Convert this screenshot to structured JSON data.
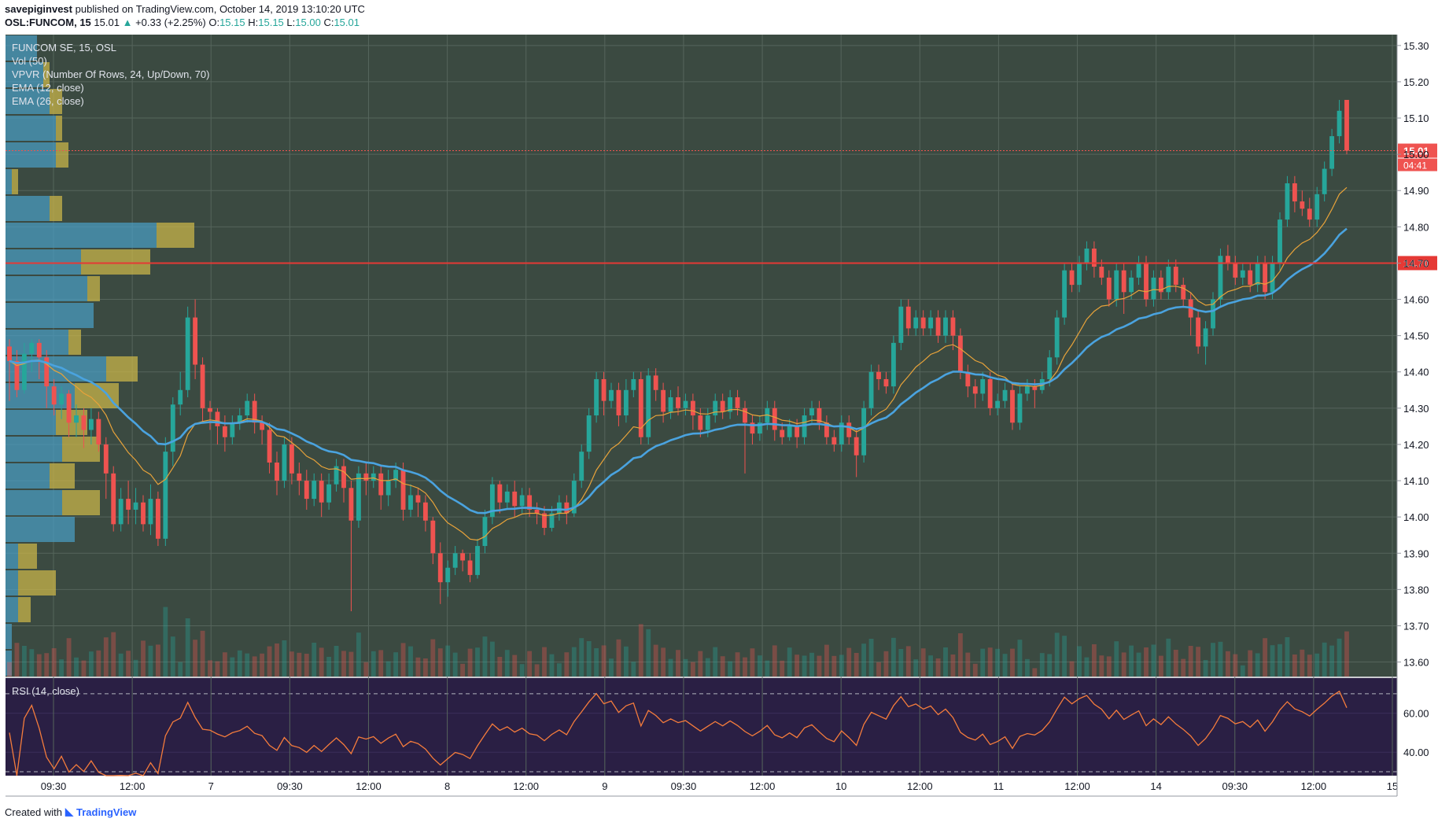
{
  "header": {
    "author": "savepiginvest",
    "published_text": "published on TradingView.com, October 14, 2019 13:10:20 UTC",
    "symbol": "OSL:FUNCOM, 15",
    "last": "15.01",
    "change": "+0.33 (+2.25%)",
    "o_label": "O:",
    "o": "15.15",
    "h_label": "H:",
    "h": "15.15",
    "l_label": "L:",
    "l": "15.00",
    "c_label": "C:",
    "c": "15.01"
  },
  "legend": {
    "title": "FUNCOM SE, 15, OSL",
    "vol": "Vol (50)",
    "vpvr": "VPVR (Number Of Rows, 24, Up/Down, 70)",
    "ema12": "EMA (12, close)",
    "ema26": "EMA (26, close)",
    "rsi": "RSI (14, close)"
  },
  "footer": {
    "created_with": "Created with",
    "brand": "TradingView"
  },
  "colors": {
    "pane_bg": "#3b4a41",
    "rsi_bg": "#2a1f44",
    "up": "#26a69a",
    "down": "#ef5350",
    "ema12": "#e8a33a",
    "ema26": "#4aa3df",
    "vpvr_up": "#4a9fc8",
    "vpvr_down": "#c8b44a",
    "level_line": "#e53935",
    "rsi_line": "#f57c3c"
  },
  "chart_data": {
    "type": "candlestick",
    "y_axis_ticks": [
      "15.30",
      "15.20",
      "15.10",
      "15.00",
      "14.90",
      "14.80",
      "14.70",
      "14.60",
      "14.50",
      "14.40",
      "14.30",
      "14.20",
      "14.10",
      "14.00",
      "13.90",
      "13.80",
      "13.70",
      "13.60"
    ],
    "ylim": [
      13.56,
      15.33
    ],
    "price_label": "15.01",
    "countdown": "04:41",
    "level_label": "14.70",
    "level": 14.7,
    "rsi_ticks": [
      "60.00",
      "40.00"
    ],
    "rsi_ylim": [
      28,
      78
    ],
    "rsi_bands": [
      70,
      30
    ],
    "x_ticks": [
      "09:30",
      "12:00",
      "7",
      "09:30",
      "12:00",
      "8",
      "12:00",
      "9",
      "09:30",
      "12:00",
      "10",
      "12:00",
      "11",
      "12:00",
      "14",
      "09:30",
      "12:00",
      "15"
    ],
    "candles": [
      [
        14.47,
        14.43,
        14.49,
        14.32
      ],
      [
        14.43,
        14.35,
        14.46,
        14.33
      ],
      [
        14.35,
        14.45,
        14.48,
        14.34
      ],
      [
        14.45,
        14.48,
        14.49,
        14.4
      ],
      [
        14.48,
        14.44,
        14.49,
        14.38
      ],
      [
        14.44,
        14.36,
        14.46,
        14.3
      ],
      [
        14.36,
        14.31,
        14.38,
        14.28
      ],
      [
        14.31,
        14.34,
        14.36,
        14.27
      ],
      [
        14.34,
        14.26,
        14.35,
        14.22
      ],
      [
        14.26,
        14.28,
        14.31,
        14.22
      ],
      [
        14.28,
        14.24,
        14.3,
        14.19
      ],
      [
        14.24,
        14.27,
        14.3,
        14.2
      ],
      [
        14.27,
        14.2,
        14.29,
        14.18
      ],
      [
        14.2,
        14.12,
        14.22,
        14.05
      ],
      [
        14.12,
        13.98,
        14.14,
        13.96
      ],
      [
        13.98,
        14.05,
        14.08,
        13.96
      ],
      [
        14.05,
        14.02,
        14.1,
        13.98
      ],
      [
        14.02,
        14.04,
        14.08,
        13.98
      ],
      [
        14.04,
        13.98,
        14.06,
        13.96
      ],
      [
        13.98,
        14.05,
        14.09,
        13.95
      ],
      [
        14.05,
        13.94,
        14.07,
        13.92
      ],
      [
        13.94,
        14.18,
        14.22,
        13.92
      ],
      [
        14.18,
        14.31,
        14.33,
        14.14
      ],
      [
        14.31,
        14.35,
        14.4,
        14.28
      ],
      [
        14.35,
        14.55,
        14.58,
        14.33
      ],
      [
        14.55,
        14.42,
        14.6,
        14.38
      ],
      [
        14.42,
        14.3,
        14.44,
        14.26
      ],
      [
        14.3,
        14.29,
        14.32,
        14.24
      ],
      [
        14.29,
        14.25,
        14.3,
        14.2
      ],
      [
        14.25,
        14.22,
        14.28,
        14.18
      ],
      [
        14.22,
        14.26,
        14.28,
        14.2
      ],
      [
        14.26,
        14.28,
        14.3,
        14.24
      ],
      [
        14.28,
        14.32,
        14.34,
        14.26
      ],
      [
        14.32,
        14.26,
        14.34,
        14.23
      ],
      [
        14.26,
        14.24,
        14.28,
        14.2
      ],
      [
        14.24,
        14.15,
        14.26,
        14.12
      ],
      [
        14.15,
        14.1,
        14.18,
        14.06
      ],
      [
        14.1,
        14.2,
        14.22,
        14.08
      ],
      [
        14.2,
        14.12,
        14.22,
        14.09
      ],
      [
        14.12,
        14.1,
        14.15,
        14.06
      ],
      [
        14.1,
        14.05,
        14.13,
        14.02
      ],
      [
        14.05,
        14.1,
        14.12,
        14.03
      ],
      [
        14.1,
        14.04,
        14.12,
        14.0
      ],
      [
        14.04,
        14.09,
        14.12,
        14.02
      ],
      [
        14.09,
        14.14,
        14.16,
        14.07
      ],
      [
        14.14,
        14.08,
        14.16,
        14.04
      ],
      [
        14.08,
        13.99,
        14.1,
        13.74
      ],
      [
        13.99,
        14.12,
        14.14,
        13.97
      ],
      [
        14.12,
        14.1,
        14.15,
        14.06
      ],
      [
        14.1,
        14.12,
        14.14,
        14.08
      ],
      [
        14.12,
        14.06,
        14.14,
        14.02
      ],
      [
        14.06,
        14.1,
        14.13,
        14.03
      ],
      [
        14.1,
        14.13,
        14.15,
        14.08
      ],
      [
        14.13,
        14.02,
        14.15,
        13.99
      ],
      [
        14.02,
        14.06,
        14.09,
        14.0
      ],
      [
        14.06,
        14.04,
        14.08,
        14.0
      ],
      [
        14.04,
        13.99,
        14.06,
        13.96
      ],
      [
        13.99,
        13.9,
        14.0,
        13.87
      ],
      [
        13.9,
        13.82,
        13.93,
        13.76
      ],
      [
        13.82,
        13.86,
        13.88,
        13.78
      ],
      [
        13.86,
        13.9,
        13.92,
        13.84
      ],
      [
        13.9,
        13.88,
        13.91,
        13.85
      ],
      [
        13.88,
        13.84,
        13.9,
        13.82
      ],
      [
        13.84,
        13.92,
        13.94,
        13.83
      ],
      [
        13.92,
        14.0,
        14.02,
        13.9
      ],
      [
        14.0,
        14.09,
        14.11,
        13.98
      ],
      [
        14.09,
        14.04,
        14.1,
        14.01
      ],
      [
        14.04,
        14.07,
        14.09,
        14.02
      ],
      [
        14.07,
        14.03,
        14.1,
        14.0
      ],
      [
        14.03,
        14.06,
        14.08,
        14.01
      ],
      [
        14.06,
        14.02,
        14.08,
        14.0
      ],
      [
        14.02,
        14.01,
        14.04,
        13.98
      ],
      [
        14.01,
        13.97,
        14.03,
        13.95
      ],
      [
        13.97,
        14.01,
        14.03,
        13.96
      ],
      [
        14.01,
        14.04,
        14.06,
        13.99
      ],
      [
        14.04,
        14.01,
        14.06,
        13.98
      ],
      [
        14.01,
        14.1,
        14.12,
        14.0
      ],
      [
        14.1,
        14.18,
        14.2,
        14.08
      ],
      [
        14.18,
        14.28,
        14.3,
        14.16
      ],
      [
        14.28,
        14.38,
        14.4,
        14.26
      ],
      [
        14.38,
        14.32,
        14.4,
        14.28
      ],
      [
        14.32,
        14.35,
        14.37,
        14.3
      ],
      [
        14.35,
        14.28,
        14.37,
        14.25
      ],
      [
        14.28,
        14.35,
        14.38,
        14.26
      ],
      [
        14.35,
        14.38,
        14.4,
        14.33
      ],
      [
        14.38,
        14.22,
        14.4,
        14.2
      ],
      [
        14.22,
        14.39,
        14.41,
        14.2
      ],
      [
        14.39,
        14.35,
        14.41,
        14.32
      ],
      [
        14.35,
        14.29,
        14.37,
        14.26
      ],
      [
        14.29,
        14.33,
        14.35,
        14.27
      ],
      [
        14.33,
        14.3,
        14.36,
        14.28
      ],
      [
        14.3,
        14.32,
        14.34,
        14.28
      ],
      [
        14.32,
        14.28,
        14.34,
        14.24
      ],
      [
        14.28,
        14.24,
        14.3,
        14.22
      ],
      [
        14.24,
        14.28,
        14.3,
        14.22
      ],
      [
        14.28,
        14.32,
        14.34,
        14.26
      ],
      [
        14.32,
        14.29,
        14.34,
        14.27
      ],
      [
        14.29,
        14.33,
        14.35,
        14.27
      ],
      [
        14.33,
        14.3,
        14.35,
        14.28
      ],
      [
        14.3,
        14.26,
        14.32,
        14.12
      ],
      [
        14.26,
        14.23,
        14.28,
        14.2
      ],
      [
        14.23,
        14.26,
        14.28,
        14.21
      ],
      [
        14.26,
        14.3,
        14.32,
        14.24
      ],
      [
        14.3,
        14.24,
        14.32,
        14.21
      ],
      [
        14.24,
        14.22,
        14.26,
        14.2
      ],
      [
        14.22,
        14.25,
        14.27,
        14.21
      ],
      [
        14.25,
        14.22,
        14.27,
        14.19
      ],
      [
        14.22,
        14.28,
        14.3,
        14.2
      ],
      [
        14.28,
        14.3,
        14.32,
        14.26
      ],
      [
        14.3,
        14.26,
        14.32,
        14.24
      ],
      [
        14.26,
        14.22,
        14.28,
        14.2
      ],
      [
        14.22,
        14.2,
        14.24,
        14.18
      ],
      [
        14.2,
        14.26,
        14.28,
        14.18
      ],
      [
        14.26,
        14.22,
        14.28,
        14.2
      ],
      [
        14.22,
        14.17,
        14.24,
        14.11
      ],
      [
        14.17,
        14.3,
        14.32,
        14.15
      ],
      [
        14.3,
        14.4,
        14.42,
        14.28
      ],
      [
        14.4,
        14.38,
        14.42,
        14.35
      ],
      [
        14.38,
        14.36,
        14.4,
        14.34
      ],
      [
        14.36,
        14.48,
        14.5,
        14.34
      ],
      [
        14.48,
        14.58,
        14.6,
        14.46
      ],
      [
        14.58,
        14.52,
        14.6,
        14.5
      ],
      [
        14.52,
        14.55,
        14.57,
        14.5
      ],
      [
        14.55,
        14.52,
        14.57,
        14.5
      ],
      [
        14.52,
        14.55,
        14.57,
        14.5
      ],
      [
        14.55,
        14.5,
        14.57,
        14.48
      ],
      [
        14.5,
        14.55,
        14.57,
        14.48
      ],
      [
        14.55,
        14.5,
        14.57,
        14.46
      ],
      [
        14.5,
        14.4,
        14.52,
        14.38
      ],
      [
        14.4,
        14.36,
        14.42,
        14.33
      ],
      [
        14.36,
        14.34,
        14.38,
        14.3
      ],
      [
        14.34,
        14.38,
        14.4,
        14.32
      ],
      [
        14.38,
        14.3,
        14.4,
        14.28
      ],
      [
        14.3,
        14.32,
        14.34,
        14.28
      ],
      [
        14.32,
        14.35,
        14.37,
        14.3
      ],
      [
        14.35,
        14.26,
        14.37,
        14.24
      ],
      [
        14.26,
        14.34,
        14.36,
        14.24
      ],
      [
        14.34,
        14.36,
        14.38,
        14.32
      ],
      [
        14.36,
        14.35,
        14.38,
        14.3
      ],
      [
        14.35,
        14.38,
        14.4,
        14.34
      ],
      [
        14.38,
        14.44,
        14.46,
        14.36
      ],
      [
        14.44,
        14.55,
        14.57,
        14.42
      ],
      [
        14.55,
        14.68,
        14.7,
        14.53
      ],
      [
        14.68,
        14.64,
        14.7,
        14.62
      ],
      [
        14.64,
        14.7,
        14.72,
        14.62
      ],
      [
        14.7,
        14.74,
        14.76,
        14.68
      ],
      [
        14.74,
        14.69,
        14.76,
        14.66
      ],
      [
        14.69,
        14.66,
        14.71,
        14.64
      ],
      [
        14.66,
        14.6,
        14.68,
        14.58
      ],
      [
        14.6,
        14.68,
        14.7,
        14.58
      ],
      [
        14.68,
        14.62,
        14.7,
        14.56
      ],
      [
        14.62,
        14.66,
        14.68,
        14.6
      ],
      [
        14.66,
        14.7,
        14.72,
        14.64
      ],
      [
        14.7,
        14.6,
        14.72,
        14.58
      ],
      [
        14.6,
        14.66,
        14.68,
        14.58
      ],
      [
        14.66,
        14.62,
        14.68,
        14.6
      ],
      [
        14.62,
        14.69,
        14.71,
        14.6
      ],
      [
        14.69,
        14.64,
        14.71,
        14.62
      ],
      [
        14.64,
        14.6,
        14.66,
        14.58
      ],
      [
        14.6,
        14.55,
        14.62,
        14.5
      ],
      [
        14.55,
        14.47,
        14.57,
        14.45
      ],
      [
        14.47,
        14.52,
        14.54,
        14.42
      ],
      [
        14.52,
        14.6,
        14.62,
        14.5
      ],
      [
        14.6,
        14.72,
        14.74,
        14.58
      ],
      [
        14.72,
        14.7,
        14.75,
        14.68
      ],
      [
        14.7,
        14.66,
        14.72,
        14.64
      ],
      [
        14.66,
        14.68,
        14.7,
        14.64
      ],
      [
        14.68,
        14.64,
        14.7,
        14.62
      ],
      [
        14.64,
        14.7,
        14.72,
        14.62
      ],
      [
        14.7,
        14.62,
        14.72,
        14.6
      ],
      [
        14.62,
        14.7,
        14.72,
        14.6
      ],
      [
        14.7,
        14.82,
        14.84,
        14.68
      ],
      [
        14.82,
        14.92,
        14.94,
        14.8
      ],
      [
        14.92,
        14.87,
        14.94,
        14.84
      ],
      [
        14.87,
        14.85,
        14.9,
        14.83
      ],
      [
        14.85,
        14.82,
        14.88,
        14.8
      ],
      [
        14.82,
        14.89,
        14.91,
        14.8
      ],
      [
        14.89,
        14.96,
        14.98,
        14.87
      ],
      [
        14.96,
        15.05,
        15.07,
        14.94
      ],
      [
        15.05,
        15.12,
        15.15,
        15.03
      ],
      [
        15.15,
        15.01,
        15.15,
        15.0
      ]
    ],
    "vpvr_rows": [
      [
        0.05,
        0.0
      ],
      [
        0.06,
        0.01
      ],
      [
        0.07,
        0.02
      ],
      [
        0.08,
        0.01
      ],
      [
        0.08,
        0.02
      ],
      [
        0.01,
        0.01
      ],
      [
        0.07,
        0.02
      ],
      [
        0.24,
        0.06
      ],
      [
        0.12,
        0.11
      ],
      [
        0.13,
        0.02
      ],
      [
        0.14,
        0.0
      ],
      [
        0.1,
        0.02
      ],
      [
        0.16,
        0.05
      ],
      [
        0.11,
        0.07
      ],
      [
        0.08,
        0.05
      ],
      [
        0.09,
        0.06
      ],
      [
        0.07,
        0.04
      ],
      [
        0.09,
        0.06
      ],
      [
        0.11,
        0.0
      ],
      [
        0.02,
        0.03
      ],
      [
        0.02,
        0.06
      ],
      [
        0.02,
        0.02
      ],
      [
        0.01,
        0.0
      ],
      [
        0.01,
        0.0
      ]
    ]
  }
}
